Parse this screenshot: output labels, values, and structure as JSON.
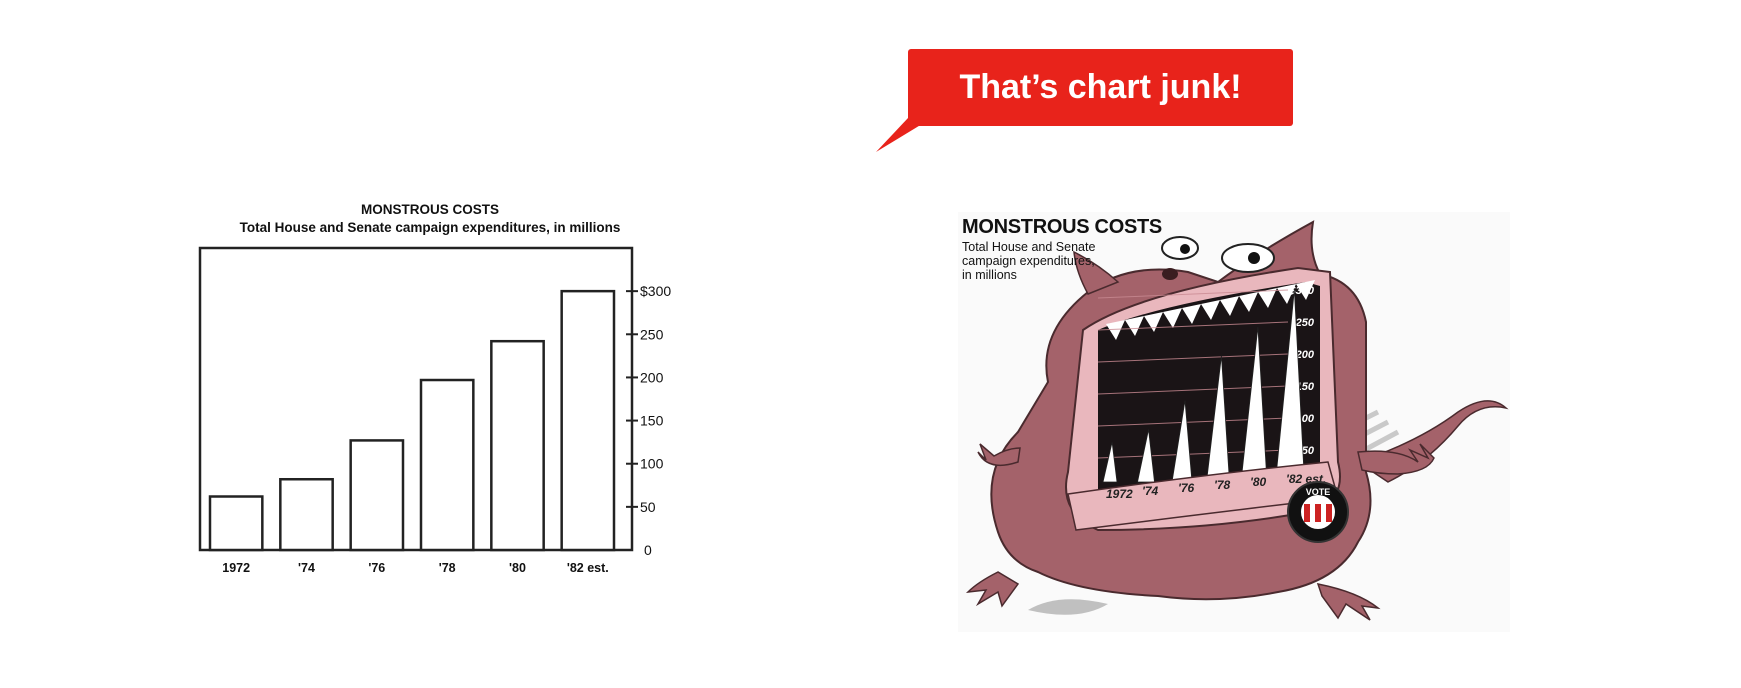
{
  "bubble": {
    "text": "That’s chart junk!",
    "color": "#e8231b"
  },
  "chart_data": [
    {
      "type": "bar",
      "title": "MONSTROUS COSTS",
      "subtitle": "Total House and Senate campaign expenditures, in millions",
      "categories": [
        "1972",
        "'74",
        "'76",
        "'78",
        "'80",
        "'82 est."
      ],
      "values": [
        62,
        82,
        127,
        197,
        242,
        300
      ],
      "y_ticks": [
        {
          "value": 0,
          "label": "0"
        },
        {
          "value": 50,
          "label": "50"
        },
        {
          "value": 100,
          "label": "100"
        },
        {
          "value": 150,
          "label": "150"
        },
        {
          "value": 200,
          "label": "200"
        },
        {
          "value": 250,
          "label": "250"
        },
        {
          "value": 300,
          "label": "$300"
        }
      ],
      "ylim": [
        0,
        350
      ],
      "y_axis_side": "right",
      "grid": false
    },
    {
      "type": "area",
      "style": "pictorial monster illustration",
      "title": "MONSTROUS COSTS",
      "subtitle_lines": [
        "Total House and Senate",
        "campaign expenditures,",
        "in millions"
      ],
      "categories": [
        "1972",
        "'74",
        "'76",
        "'78",
        "'80",
        "'82 est."
      ],
      "values": [
        62,
        82,
        127,
        197,
        242,
        300
      ],
      "y_ticks": [
        {
          "value": 50,
          "label": "50"
        },
        {
          "value": 100,
          "label": "100"
        },
        {
          "value": 150,
          "label": "150"
        },
        {
          "value": 200,
          "label": "200"
        },
        {
          "value": 250,
          "label": "250"
        },
        {
          "value": 300,
          "label": "$300"
        }
      ],
      "ylim": [
        0,
        300
      ],
      "badge_text": "VOTE",
      "colors": {
        "body": "#a4626a",
        "mouth": "#1a1416",
        "lip": "#e9b7bd",
        "teeth": "#ffffff"
      }
    }
  ]
}
